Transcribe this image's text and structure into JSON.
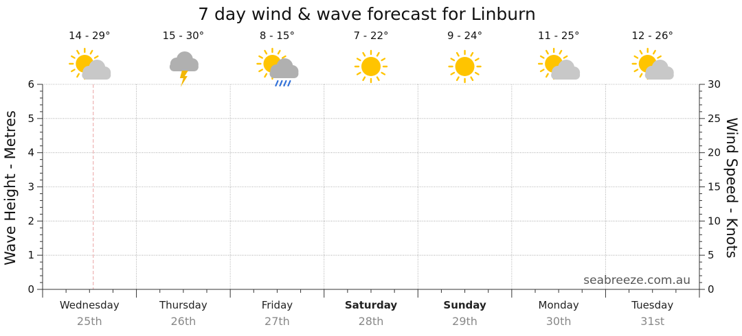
{
  "chart_data": {
    "type": "line",
    "title": "7 day wind & wave forecast for Linburn",
    "ylabel_left": "Wave Height - Metres",
    "ylabel_right": "Wind Speed - Knots",
    "ylim_left": [
      0,
      6
    ],
    "ylim_right": [
      0,
      30
    ],
    "yticks_left": [
      "0",
      "1",
      "2",
      "3",
      "4",
      "5",
      "6"
    ],
    "yticks_right": [
      "0",
      "5",
      "10",
      "15",
      "20",
      "25",
      "30"
    ],
    "grid": true,
    "days": [
      {
        "name": "Wednesday",
        "date": "25th",
        "temp": "14 - 29°",
        "icon": "partly-cloudy-icon",
        "bold": false
      },
      {
        "name": "Thursday",
        "date": "26th",
        "temp": "15 - 30°",
        "icon": "storm-icon",
        "bold": false
      },
      {
        "name": "Friday",
        "date": "27th",
        "temp": "8 - 15°",
        "icon": "showers-icon",
        "bold": false
      },
      {
        "name": "Saturday",
        "date": "28th",
        "temp": "7 - 22°",
        "icon": "sunny-icon",
        "bold": true
      },
      {
        "name": "Sunday",
        "date": "29th",
        "temp": "9 - 24°",
        "icon": "sunny-icon",
        "bold": true
      },
      {
        "name": "Monday",
        "date": "30th",
        "temp": "11 - 25°",
        "icon": "partly-cloudy-icon",
        "bold": false
      },
      {
        "name": "Tuesday",
        "date": "31st",
        "temp": "12 - 26°",
        "icon": "partly-cloudy-icon",
        "bold": false
      }
    ],
    "series": [],
    "current_time_day_fraction": 0.54
  },
  "watermark": "seabreeze.com.au",
  "colors": {
    "sun": "#FFC400",
    "cloud": "#C8C8C8",
    "cloud_dark": "#B0B0B0",
    "rain": "#2F6FD8",
    "bolt": "#F2B705",
    "now_line": "#E8A0A0",
    "grid": "#9a9a9a"
  }
}
